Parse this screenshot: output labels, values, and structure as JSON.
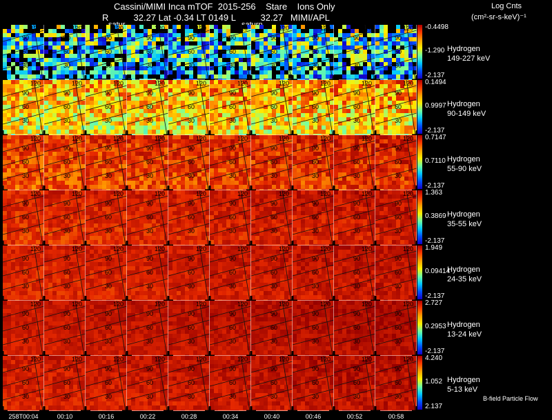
{
  "header": {
    "line1": "Cassini/MIMI Inca mTOF  2015-256    Stare    Ions Only",
    "line2": "R          32.27 Lat -0.34 LT 0149 L          32.27   MIMI/APL",
    "saturn_label_1": "satur",
    "saturn_label_2": "saturn",
    "units_title": "Log Cnts",
    "units": "(cm²-sr-s-keV)⁻¹"
  },
  "contour_labels": [
    "120",
    "90",
    "60",
    "30"
  ],
  "time_labels": [
    "258T00:04",
    "00:10",
    "00:16",
    "00:22",
    "00:28",
    "00:34",
    "00:40",
    "00:46",
    "00:52",
    "00:58"
  ],
  "panels": [
    {
      "species": "Hydrogen",
      "energy": "149-227 keV",
      "cb_top": "-0.4498",
      "cb_mid": "-1.290",
      "cb_bot": "-2.137",
      "level": 0.35,
      "spread": 0.38
    },
    {
      "species": "Hydrogen",
      "energy": "90-149 keV",
      "cb_top": "0.1494",
      "cb_mid": "0.9997",
      "cb_bot": "-2.137",
      "level": 0.7,
      "spread": 0.2
    },
    {
      "species": "Hydrogen",
      "energy": "55-90 keV",
      "cb_top": "0.7147",
      "cb_mid": "0.7110",
      "cb_bot": "-2.137",
      "level": 0.87,
      "spread": 0.09
    },
    {
      "species": "Hydrogen",
      "energy": "35-55 keV",
      "cb_top": "1.363",
      "cb_mid": "0.3869",
      "cb_bot": "-2.137",
      "level": 0.9,
      "spread": 0.06
    },
    {
      "species": "Hydrogen",
      "energy": "24-35 keV",
      "cb_top": "1.949",
      "cb_mid": "0.09414",
      "cb_bot": "-2.137",
      "level": 0.91,
      "spread": 0.05
    },
    {
      "species": "Hydrogen",
      "energy": "13-24 keV",
      "cb_top": "2.727",
      "cb_mid": "0.2953",
      "cb_bot": "-2.137",
      "level": 0.93,
      "spread": 0.04
    },
    {
      "species": "Hydrogen",
      "energy": "5-13 keV",
      "cb_top": "4.240",
      "cb_mid": "1.052",
      "cb_bot": "2.137",
      "level": 0.92,
      "spread": 0.05
    }
  ],
  "footer_note": "B-field Particle Flow"
}
